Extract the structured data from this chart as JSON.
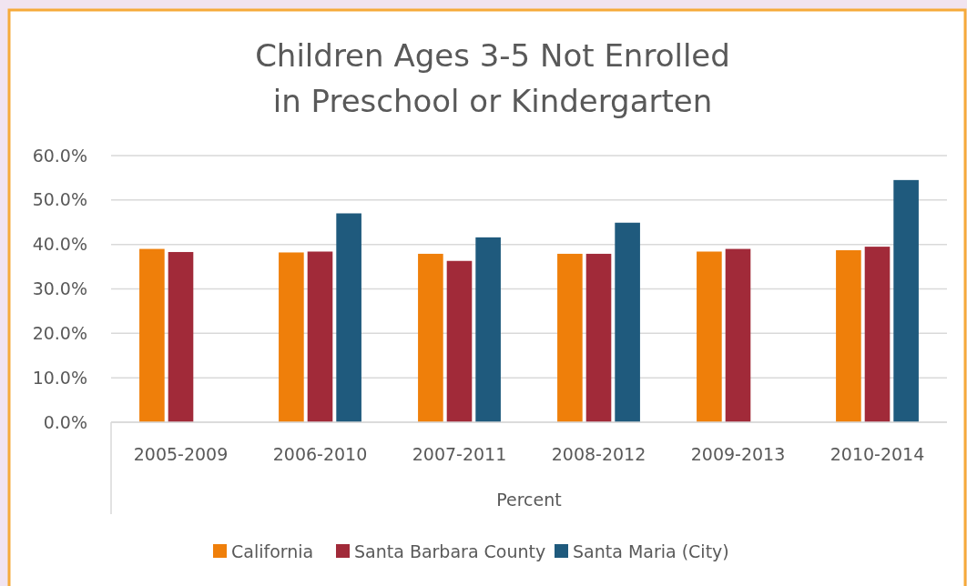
{
  "chart_data": {
    "type": "bar",
    "title": "Children Ages 3-5 Not Enrolled\nin Preschool or Kindergarten",
    "xlabel": "Percent",
    "categories": [
      "2005-2009",
      "2006-2010",
      "2007-2011",
      "2008-2012",
      "2009-2013",
      "2010-2014"
    ],
    "series": [
      {
        "name": "California",
        "color": "#ef7f0a",
        "values": [
          39.0,
          38.2,
          37.9,
          37.9,
          38.4,
          38.7
        ]
      },
      {
        "name": "Santa Barbara County",
        "color": "#a12a39",
        "values": [
          38.3,
          38.4,
          36.3,
          37.9,
          39.0,
          39.5
        ]
      },
      {
        "name": "Santa Maria (City)",
        "color": "#1f5a7d",
        "values": [
          null,
          47.0,
          41.6,
          44.9,
          null,
          54.5
        ]
      }
    ],
    "ylim": [
      0,
      60
    ],
    "yticks": [
      {
        "value": 0,
        "label": "0.0%"
      },
      {
        "value": 10,
        "label": "10.0%"
      },
      {
        "value": 20,
        "label": "20.0%"
      },
      {
        "value": 30,
        "label": "30.0%"
      },
      {
        "value": 40,
        "label": "40.0%"
      },
      {
        "value": 50,
        "label": "50.0%"
      },
      {
        "value": 60,
        "label": "60.0%"
      }
    ],
    "grid": "y",
    "legend": "bottom"
  }
}
